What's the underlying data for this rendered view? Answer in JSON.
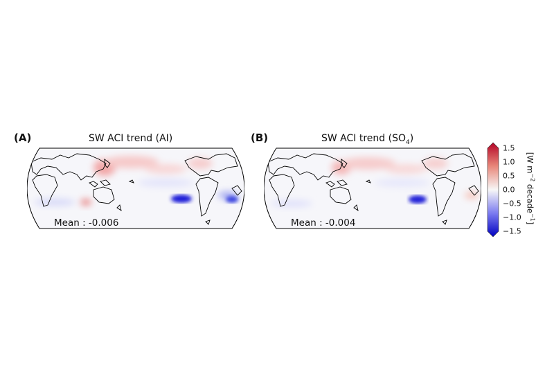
{
  "panels": [
    {
      "letter": "(A)",
      "title": "SW ACI trend (AI)",
      "mean_label": "Mean : -0.006"
    },
    {
      "letter": "(B)",
      "title_main": "SW ACI trend (SO",
      "title_sub": "4",
      "title_close": ")",
      "mean_label": "Mean : -0.004"
    }
  ],
  "colorbar": {
    "ticks": [
      "1.5",
      "1.0",
      "0.5",
      "0.0",
      "−0.5",
      "−1.0",
      "−1.5"
    ],
    "label_a": "[W m",
    "label_sup1": "−2",
    "label_b": " decade",
    "label_sup2": "−1",
    "label_c": "]",
    "colors": {
      "max": "#b40426",
      "mid": "#f7f7f7",
      "min": "#0000c0"
    }
  },
  "map_colors": {
    "positive": "#e07070",
    "negative": "#1a1ad8",
    "coast": "#000000"
  }
}
